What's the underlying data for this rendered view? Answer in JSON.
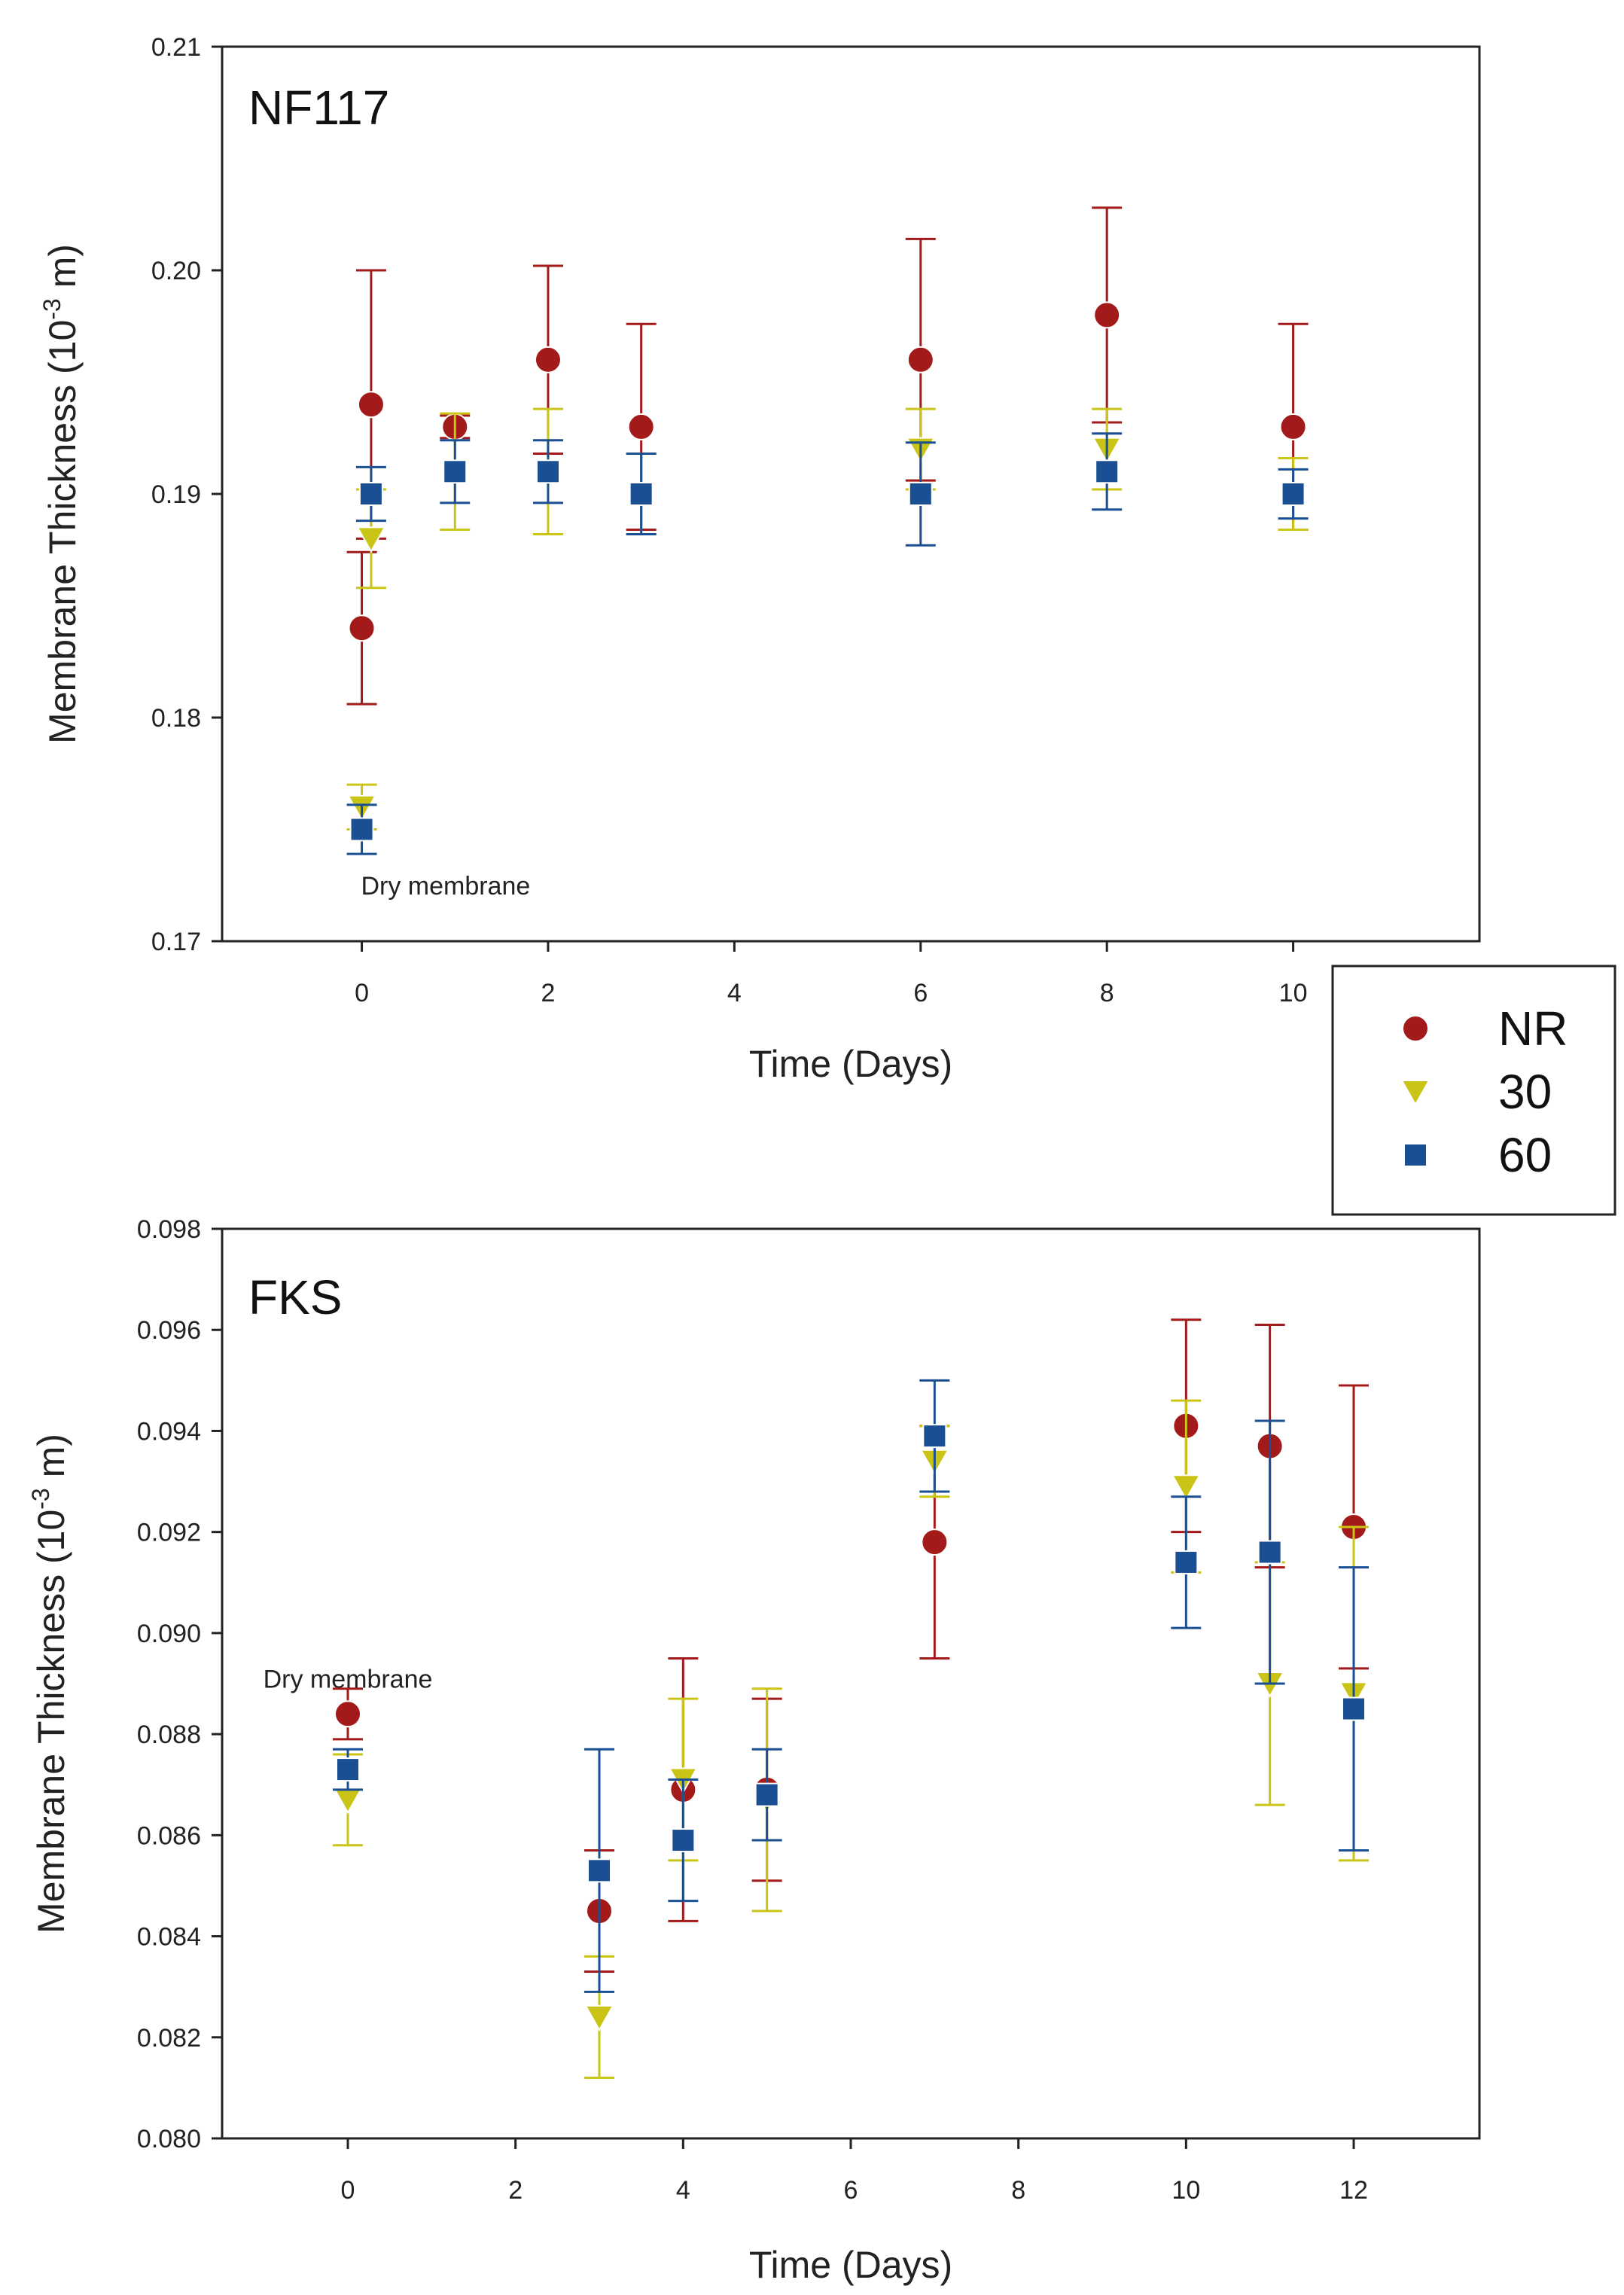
{
  "chart_data": [
    {
      "type": "scatter",
      "title": "NF117",
      "xlabel": "Time (Days)",
      "ylabel_main": "Membrane Thickness (10",
      "ylabel_sup": "-3",
      "ylabel_end": " m)",
      "xlim": [
        -1.5,
        12
      ],
      "ylim": [
        0.17,
        0.21
      ],
      "xticks": [
        0,
        2,
        4,
        6,
        8,
        10
      ],
      "xtick_labels": [
        "0",
        "2",
        "4",
        "6",
        "8",
        "10"
      ],
      "yticks": [
        0.17,
        0.18,
        0.19,
        0.2,
        0.21
      ],
      "ytick_labels": [
        "0.17",
        "0.18",
        "0.19",
        "0.20",
        "0.21"
      ],
      "annotation": {
        "text": "Dry membrane",
        "x": 0.9,
        "y": 0.1725
      },
      "series": [
        {
          "name": "NR",
          "color": "#a31a1a",
          "marker": "circle",
          "points": [
            {
              "x": 0,
              "y": 0.184,
              "err": 0.0034
            },
            {
              "x": 0.1,
              "y": 0.194,
              "err": 0.006
            },
            {
              "x": 1,
              "y": 0.193,
              "err": 0.0005
            },
            {
              "x": 2,
              "y": 0.196,
              "err": 0.0042
            },
            {
              "x": 3,
              "y": 0.193,
              "err": 0.0046
            },
            {
              "x": 6,
              "y": 0.196,
              "err": 0.0054
            },
            {
              "x": 8,
              "y": 0.198,
              "err": 0.0048
            },
            {
              "x": 10,
              "y": 0.193,
              "err": 0.0046
            }
          ]
        },
        {
          "name": "30",
          "color": "#c9c415",
          "marker": "triangle-down",
          "points": [
            {
              "x": 0,
              "y": 0.176,
              "err": 0.001
            },
            {
              "x": 0.1,
              "y": 0.188,
              "err": 0.0022
            },
            {
              "x": 1,
              "y": 0.191,
              "err": 0.0026
            },
            {
              "x": 2,
              "y": 0.191,
              "err": 0.0028
            },
            {
              "x": 3,
              "y": 0.19,
              "err": 0.0018
            },
            {
              "x": 6,
              "y": 0.192,
              "err": 0.0018
            },
            {
              "x": 8,
              "y": 0.192,
              "err": 0.0018
            },
            {
              "x": 10,
              "y": 0.19,
              "err": 0.0016
            }
          ]
        },
        {
          "name": "60",
          "color": "#1b4f93",
          "marker": "square",
          "points": [
            {
              "x": 0,
              "y": 0.175,
              "err": 0.0011
            },
            {
              "x": 0.1,
              "y": 0.19,
              "err": 0.0012
            },
            {
              "x": 1,
              "y": 0.191,
              "err": 0.0014
            },
            {
              "x": 2,
              "y": 0.191,
              "err": 0.0014
            },
            {
              "x": 3,
              "y": 0.19,
              "err": 0.0018
            },
            {
              "x": 6,
              "y": 0.19,
              "err": 0.0023
            },
            {
              "x": 8,
              "y": 0.191,
              "err": 0.0017
            },
            {
              "x": 10,
              "y": 0.19,
              "err": 0.0011
            }
          ]
        }
      ]
    },
    {
      "type": "scatter",
      "title": "FKS",
      "xlabel": "Time (Days)",
      "ylabel_main": "Membrane Thickness (10",
      "ylabel_sup": "-3",
      "ylabel_end": " m)",
      "xlim": [
        -1.5,
        13.5
      ],
      "ylim": [
        0.08,
        0.098
      ],
      "xticks": [
        0,
        2,
        4,
        6,
        8,
        10,
        12
      ],
      "xtick_labels": [
        "0",
        "2",
        "4",
        "6",
        "8",
        "10",
        "12"
      ],
      "yticks": [
        0.08,
        0.082,
        0.084,
        0.086,
        0.088,
        0.09,
        0.092,
        0.094,
        0.096,
        0.098
      ],
      "ytick_labels": [
        "0.080",
        "0.082",
        "0.084",
        "0.086",
        "0.088",
        "0.090",
        "0.092",
        "0.094",
        "0.096",
        "0.098"
      ],
      "annotation": {
        "text": "Dry membrane",
        "x": 0,
        "y": 0.0891
      },
      "series": [
        {
          "name": "NR",
          "color": "#a31a1a",
          "marker": "circle",
          "points": [
            {
              "x": 0,
              "y": 0.0884,
              "err": 0.0005
            },
            {
              "x": 3,
              "y": 0.0845,
              "err": 0.0012
            },
            {
              "x": 4,
              "y": 0.0869,
              "err": 0.0026
            },
            {
              "x": 5,
              "y": 0.0869,
              "err": 0.0018
            },
            {
              "x": 7,
              "y": 0.0918,
              "err": 0.0023
            },
            {
              "x": 10,
              "y": 0.0941,
              "err": 0.0021
            },
            {
              "x": 11,
              "y": 0.0937,
              "err": 0.0024
            },
            {
              "x": 12,
              "y": 0.0921,
              "err": 0.0028
            }
          ]
        },
        {
          "name": "30",
          "color": "#c9c415",
          "marker": "triangle-down",
          "points": [
            {
              "x": 0,
              "y": 0.0867,
              "err": 0.0009
            },
            {
              "x": 3,
              "y": 0.0824,
              "err": 0.0012
            },
            {
              "x": 4,
              "y": 0.0871,
              "err": 0.0016
            },
            {
              "x": 5,
              "y": 0.0867,
              "err": 0.0022
            },
            {
              "x": 7,
              "y": 0.0934,
              "err": 0.0007
            },
            {
              "x": 10,
              "y": 0.0929,
              "err": 0.0017
            },
            {
              "x": 11,
              "y": 0.089,
              "err": 0.0024
            },
            {
              "x": 12,
              "y": 0.0888,
              "err": 0.0033
            }
          ]
        },
        {
          "name": "60",
          "color": "#1b4f93",
          "marker": "square",
          "points": [
            {
              "x": 0,
              "y": 0.0873,
              "err": 0.0004
            },
            {
              "x": 3,
              "y": 0.0853,
              "err": 0.0024
            },
            {
              "x": 4,
              "y": 0.0859,
              "err": 0.0012
            },
            {
              "x": 5,
              "y": 0.0868,
              "err": 0.0009
            },
            {
              "x": 7,
              "y": 0.0939,
              "err": 0.0011
            },
            {
              "x": 10,
              "y": 0.0914,
              "err": 0.0013
            },
            {
              "x": 11,
              "y": 0.0916,
              "err": 0.0026
            },
            {
              "x": 12,
              "y": 0.0885,
              "err": 0.0028
            }
          ]
        }
      ]
    }
  ],
  "legend": {
    "items": [
      {
        "label": "NR",
        "color": "#a31a1a",
        "marker": "circle"
      },
      {
        "label": "30",
        "color": "#c9c415",
        "marker": "triangle-down"
      },
      {
        "label": "60",
        "color": "#1b4f93",
        "marker": "square"
      }
    ]
  }
}
